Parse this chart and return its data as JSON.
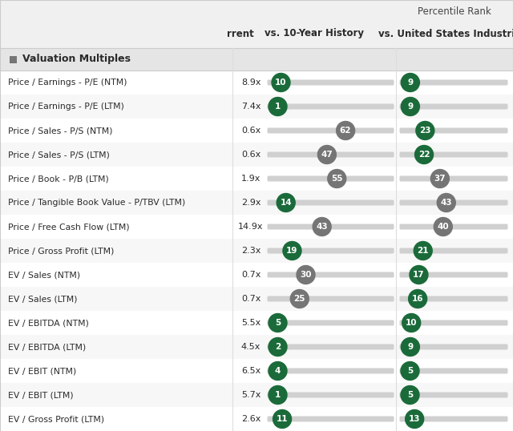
{
  "title": "Percentile Rank",
  "col_current": "rrent",
  "col_history": "vs. 10-Year History",
  "col_industry": "vs. United States Industrials",
  "section_label": "Valuation Multiples",
  "rows": [
    {
      "label": "Price / Earnings - P/E (NTM)",
      "current": "8.9x",
      "hist_val": 10,
      "hist_color": "green",
      "ind_val": 9,
      "ind_color": "green"
    },
    {
      "label": "Price / Earnings - P/E (LTM)",
      "current": "7.4x",
      "hist_val": 1,
      "hist_color": "green",
      "ind_val": 9,
      "ind_color": "green"
    },
    {
      "label": "Price / Sales - P/S (NTM)",
      "current": "0.6x",
      "hist_val": 62,
      "hist_color": "gray",
      "ind_val": 23,
      "ind_color": "green"
    },
    {
      "label": "Price / Sales - P/S (LTM)",
      "current": "0.6x",
      "hist_val": 47,
      "hist_color": "gray",
      "ind_val": 22,
      "ind_color": "green"
    },
    {
      "label": "Price / Book - P/B (LTM)",
      "current": "1.9x",
      "hist_val": 55,
      "hist_color": "gray",
      "ind_val": 37,
      "ind_color": "gray"
    },
    {
      "label": "Price / Tangible Book Value - P/TBV (LTM)",
      "current": "2.9x",
      "hist_val": 14,
      "hist_color": "green",
      "ind_val": 43,
      "ind_color": "gray"
    },
    {
      "label": "Price / Free Cash Flow (LTM)",
      "current": "14.9x",
      "hist_val": 43,
      "hist_color": "gray",
      "ind_val": 40,
      "ind_color": "gray"
    },
    {
      "label": "Price / Gross Profit (LTM)",
      "current": "2.3x",
      "hist_val": 19,
      "hist_color": "green",
      "ind_val": 21,
      "ind_color": "green"
    },
    {
      "label": "EV / Sales (NTM)",
      "current": "0.7x",
      "hist_val": 30,
      "hist_color": "gray",
      "ind_val": 17,
      "ind_color": "green"
    },
    {
      "label": "EV / Sales (LTM)",
      "current": "0.7x",
      "hist_val": 25,
      "hist_color": "gray",
      "ind_val": 16,
      "ind_color": "green"
    },
    {
      "label": "EV / EBITDA (NTM)",
      "current": "5.5x",
      "hist_val": 5,
      "hist_color": "green",
      "ind_val": 10,
      "ind_color": "green"
    },
    {
      "label": "EV / EBITDA (LTM)",
      "current": "4.5x",
      "hist_val": 2,
      "hist_color": "green",
      "ind_val": 9,
      "ind_color": "green"
    },
    {
      "label": "EV / EBIT (NTM)",
      "current": "6.5x",
      "hist_val": 4,
      "hist_color": "green",
      "ind_val": 5,
      "ind_color": "green"
    },
    {
      "label": "EV / EBIT (LTM)",
      "current": "5.7x",
      "hist_val": 1,
      "hist_color": "green",
      "ind_val": 5,
      "ind_color": "green"
    },
    {
      "label": "EV / Gross Profit (LTM)",
      "current": "2.6x",
      "hist_val": 11,
      "hist_color": "green",
      "ind_val": 13,
      "ind_color": "green"
    }
  ],
  "green_color": "#1b6b3a",
  "gray_color": "#757575",
  "track_color": "#d0d0d0",
  "bg_color": "#f0f0f0",
  "white_color": "#ffffff",
  "section_bg": "#e5e5e5",
  "header_line_color": "#cccccc",
  "row_alt_color": "#f7f7f7",
  "text_dark": "#2a2a2a",
  "text_medium": "#444444",
  "col_divider": "#dddddd"
}
